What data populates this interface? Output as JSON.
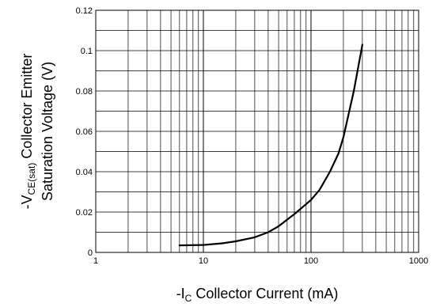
{
  "chart_data": {
    "type": "line",
    "title": "",
    "xlabel": {
      "prefix": "-I",
      "sub": "C",
      "rest": " Collector Current (mA)"
    },
    "ylabel": {
      "line1_prefix": "-V",
      "line1_sub": "CE(sat)",
      "line1_rest": " Collector Emitter",
      "line2": "Saturation Voltage (V)"
    },
    "x_scale": "log",
    "xlim": [
      1,
      1000
    ],
    "ylim": [
      0,
      0.12
    ],
    "x_ticks": [
      {
        "value": 1,
        "label": "1"
      },
      {
        "value": 10,
        "label": "10"
      },
      {
        "value": 100,
        "label": "100"
      },
      {
        "value": 1000,
        "label": "1000"
      }
    ],
    "y_ticks": [
      {
        "value": 0,
        "label": "0"
      },
      {
        "value": 0.02,
        "label": "0.02"
      },
      {
        "value": 0.04,
        "label": "0.04"
      },
      {
        "value": 0.06,
        "label": "0.06"
      },
      {
        "value": 0.08,
        "label": "0.08"
      },
      {
        "value": 0.1,
        "label": "0.1"
      },
      {
        "value": 0.12,
        "label": "0.12"
      }
    ],
    "y_minor_gridlines": [
      0.01,
      0.03,
      0.05,
      0.07,
      0.09,
      0.11
    ],
    "grid": true,
    "line_color": "#000000",
    "series": [
      {
        "x": [
          6,
          10,
          15,
          20,
          30,
          40,
          50,
          70,
          100,
          120,
          150,
          180,
          200,
          250,
          300
        ],
        "y": [
          0.0035,
          0.0037,
          0.0045,
          0.0055,
          0.0075,
          0.01,
          0.013,
          0.019,
          0.026,
          0.031,
          0.04,
          0.049,
          0.057,
          0.08,
          0.103
        ]
      }
    ]
  }
}
